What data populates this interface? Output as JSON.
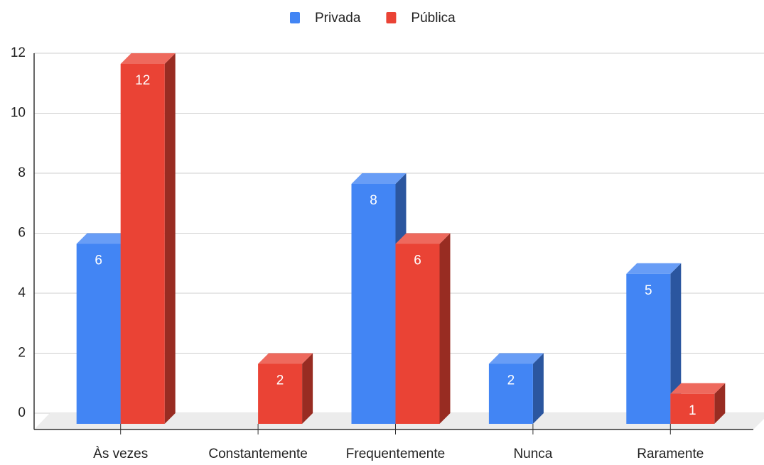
{
  "chart_data": {
    "type": "bar3d",
    "categories": [
      "Às vezes",
      "Constantemente",
      "Frequentemente",
      "Nunca",
      "Raramente"
    ],
    "series": [
      {
        "name": "Privada",
        "color": "#4285f4",
        "values": [
          6,
          null,
          8,
          2,
          5
        ]
      },
      {
        "name": "Pública",
        "color": "#ea4335",
        "values": [
          12,
          2,
          6,
          null,
          1
        ]
      }
    ],
    "ylim": [
      0,
      12
    ],
    "yticks": [
      0,
      2,
      4,
      6,
      8,
      10,
      12
    ],
    "grid": true,
    "legend": "top"
  }
}
